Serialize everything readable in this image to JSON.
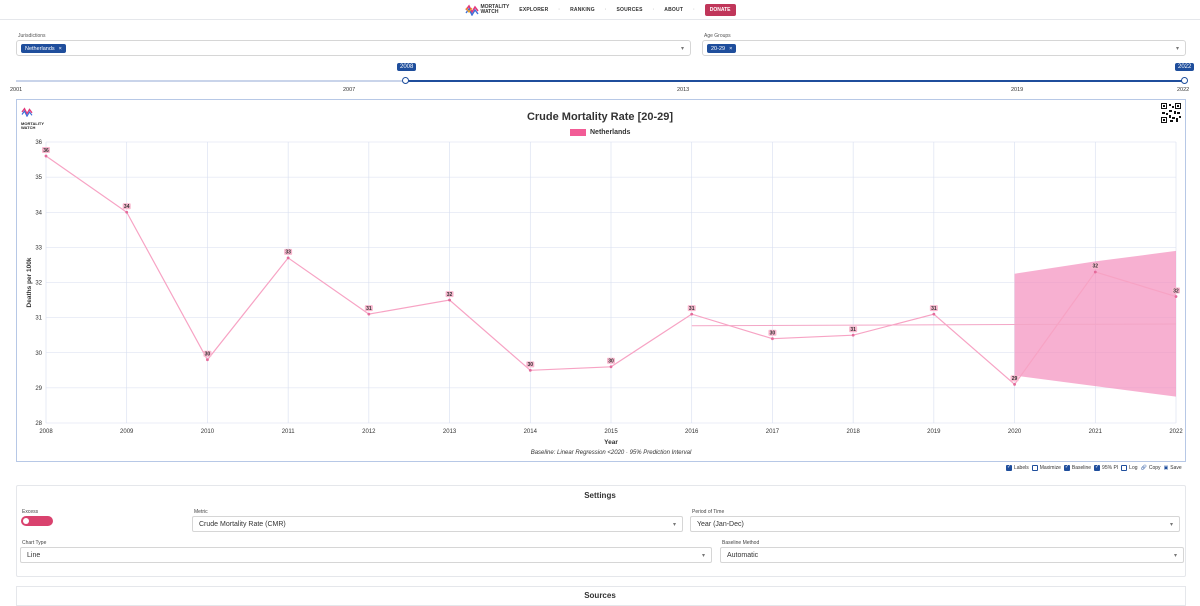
{
  "nav": {
    "logo_line1": "MORTALITY",
    "logo_line2": "WATCH",
    "links": [
      "EXPLORER",
      "RANKING",
      "SOURCES",
      "ABOUT"
    ],
    "donate": "DONATE"
  },
  "selectors": {
    "jurisdictions_label": "Jurisdictions",
    "jurisdiction_chip": "Netherlands",
    "age_groups_label": "Age Groups",
    "age_chip": "20-29",
    "chip_remove": "×"
  },
  "slider": {
    "ticks": [
      "2001",
      "2007",
      "2013",
      "2019",
      "2022"
    ],
    "start_value": "2008",
    "end_value": "2022"
  },
  "chart_data": {
    "type": "line",
    "title": "Crude Mortality Rate [20-29]",
    "xlabel": "Year",
    "ylabel": "Deaths per 100k",
    "ylim": [
      28,
      36
    ],
    "yticks": [
      28,
      29,
      30,
      31,
      32,
      33,
      34,
      35,
      36
    ],
    "x": [
      "2008",
      "2009",
      "2010",
      "2011",
      "2012",
      "2013",
      "2014",
      "2015",
      "2016",
      "2017",
      "2018",
      "2019",
      "2020",
      "2021",
      "2022"
    ],
    "series": [
      {
        "name": "Netherlands",
        "values": [
          35.6,
          34.0,
          29.8,
          32.7,
          31.1,
          31.5,
          29.5,
          29.6,
          31.1,
          30.4,
          30.5,
          31.1,
          29.1,
          32.3,
          31.6
        ],
        "labels": [
          "36",
          "34",
          "30",
          "33",
          "31",
          "32",
          "30",
          "30",
          "31",
          "30",
          "31",
          "31",
          "29",
          "32",
          "32"
        ]
      }
    ],
    "baseline": {
      "x": [
        "2016",
        "2022"
      ],
      "values": [
        30.77,
        30.82
      ]
    },
    "prediction_interval": {
      "x": [
        "2020",
        "2021",
        "2022"
      ],
      "upper": [
        32.25,
        32.6,
        32.9
      ],
      "lower": [
        29.35,
        29.05,
        28.75
      ]
    },
    "footnote": "Baseline: Linear Regression <2020 · 95% Prediction Interval",
    "colors": {
      "line": "#f7a3c4",
      "band": "#f48fbe",
      "baseline": "#f3a6c6",
      "label_bg": "#f9b8cf",
      "grid": "#d7deef"
    }
  },
  "controls": {
    "labels": "Labels",
    "maximize": "Maximize",
    "baseline": "Baseline",
    "pi": "95% PI",
    "log": "Log",
    "copy": "Copy",
    "save": "Save"
  },
  "settings": {
    "title": "Settings",
    "excess_label": "Excess",
    "metric_label": "Metric",
    "metric_value": "Crude Mortality Rate (CMR)",
    "period_label": "Period of Time",
    "period_value": "Year (Jan-Dec)",
    "chart_type_label": "Chart Type",
    "chart_type_value": "Line",
    "baseline_method_label": "Baseline Method",
    "baseline_method_value": "Automatic"
  },
  "sources": {
    "title": "Sources"
  }
}
